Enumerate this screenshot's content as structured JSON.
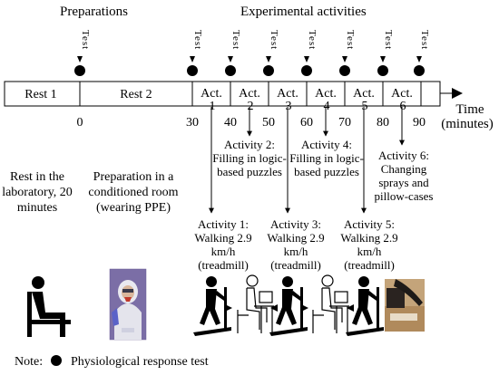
{
  "headers": {
    "preparations": "Preparations",
    "experimental": "Experimental activities"
  },
  "test_label": "Test",
  "timeline": {
    "rest1": "Rest 1",
    "rest2": "Rest 2",
    "acts": [
      "Act. 1",
      "Act. 2",
      "Act. 3",
      "Act. 4",
      "Act. 5",
      "Act. 6"
    ],
    "ticks": [
      "0",
      "30",
      "40",
      "50",
      "60",
      "70",
      "80",
      "90"
    ],
    "axis_title": "Time",
    "axis_unit": "(minutes)"
  },
  "descriptions": {
    "rest_lab": "Rest in the laboratory, 20 minutes",
    "prep_room": "Preparation in a conditioned room (wearing PPE)",
    "activity1": "Activity 1: Walking 2.9 km/h (treadmill)",
    "activity2": "Activity 2: Filling in logic-based puzzles",
    "activity3": "Activity 3: Walking 2.9 km/h (treadmill)",
    "activity4": "Activity 4: Filling in logic-based puzzles",
    "activity5": "Activity 5: Walking 2.9 km/h (treadmill)",
    "activity6": "Activity 6: Changing sprays and pillow-cases"
  },
  "note": {
    "label": "Note:",
    "text": "Physiological response test"
  }
}
